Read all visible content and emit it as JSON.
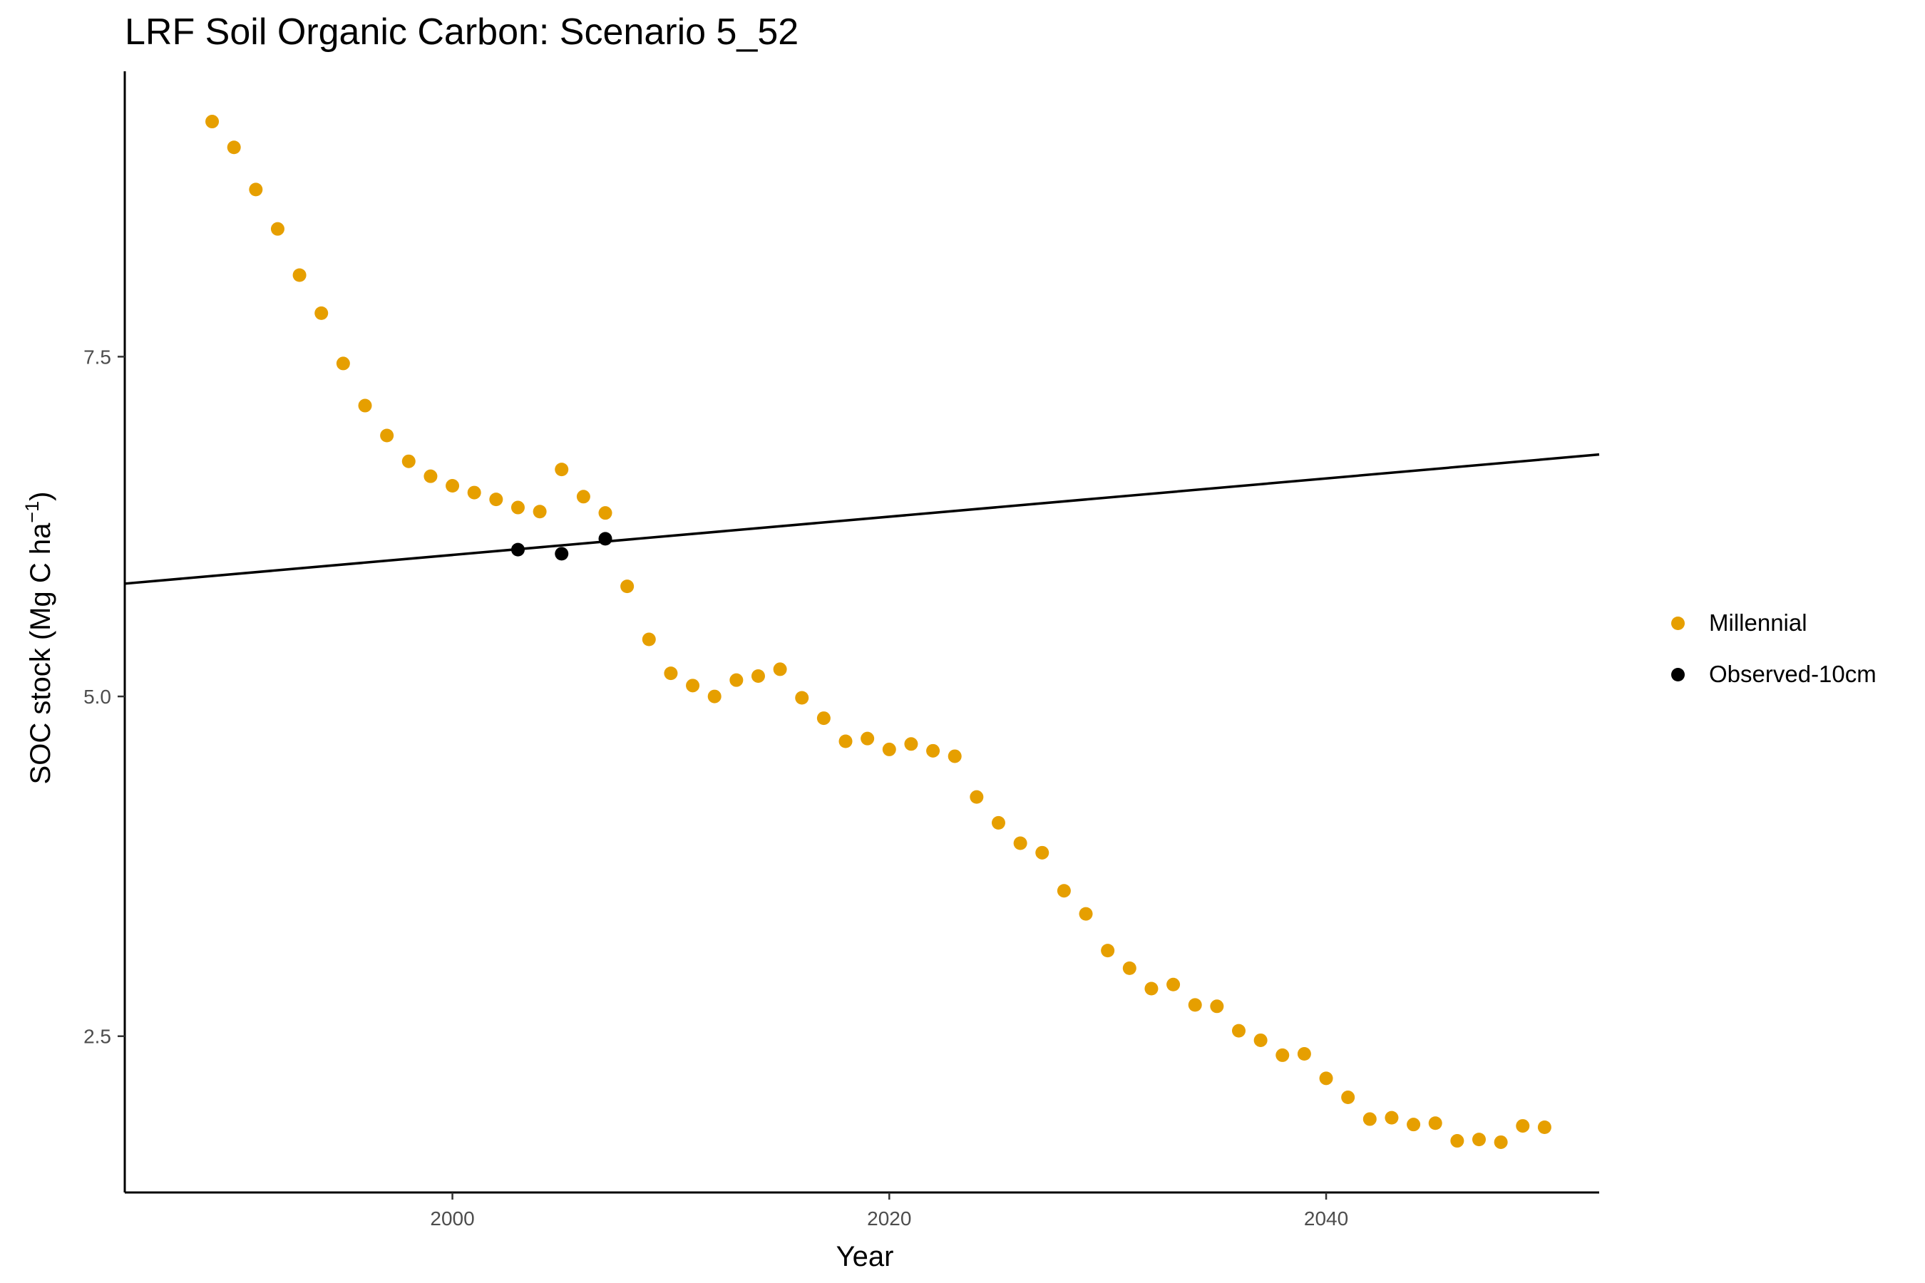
{
  "chart_data": {
    "type": "scatter",
    "title": "LRF Soil Organic Carbon: Scenario  5_52",
    "xlabel": "Year",
    "ylabel": "SOC stock (Mg C ha",
    "ylabel_sup": "−1",
    "ylabel_tail": ")",
    "xlim": [
      1985,
      2052.5
    ],
    "ylim": [
      1.35,
      9.6
    ],
    "x_ticks": [
      2000,
      2020,
      2040
    ],
    "x_tick_labels": [
      "2000",
      "2020",
      "2040"
    ],
    "y_ticks": [
      2.5,
      5.0,
      7.5
    ],
    "y_tick_labels": [
      "2.5",
      "5.0",
      "7.5"
    ],
    "grid": false,
    "legend_position": "right",
    "series": [
      {
        "name": "Millennial",
        "color": "#E69F00",
        "points": [
          [
            1989,
            9.23
          ],
          [
            1990,
            9.04
          ],
          [
            1991,
            8.73
          ],
          [
            1992,
            8.44
          ],
          [
            1993,
            8.1
          ],
          [
            1994,
            7.82
          ],
          [
            1995,
            7.45
          ],
          [
            1996,
            7.14
          ],
          [
            1997,
            6.92
          ],
          [
            1998,
            6.73
          ],
          [
            1999,
            6.62
          ],
          [
            2000,
            6.55
          ],
          [
            2001,
            6.5
          ],
          [
            2002,
            6.45
          ],
          [
            2003,
            6.39
          ],
          [
            2004,
            6.36
          ],
          [
            2005,
            6.67
          ],
          [
            2006,
            6.47
          ],
          [
            2007,
            6.35
          ],
          [
            2008,
            5.81
          ],
          [
            2009,
            5.42
          ],
          [
            2010,
            5.17
          ],
          [
            2011,
            5.08
          ],
          [
            2012,
            5.0
          ],
          [
            2013,
            5.12
          ],
          [
            2014,
            5.15
          ],
          [
            2015,
            5.2
          ],
          [
            2016,
            4.99
          ],
          [
            2017,
            4.84
          ],
          [
            2018,
            4.67
          ],
          [
            2019,
            4.69
          ],
          [
            2020,
            4.61
          ],
          [
            2021,
            4.65
          ],
          [
            2022,
            4.6
          ],
          [
            2023,
            4.56
          ],
          [
            2024,
            4.26
          ],
          [
            2025,
            4.07
          ],
          [
            2026,
            3.92
          ],
          [
            2027,
            3.85
          ],
          [
            2028,
            3.57
          ],
          [
            2029,
            3.4
          ],
          [
            2030,
            3.13
          ],
          [
            2031,
            3.0
          ],
          [
            2032,
            2.85
          ],
          [
            2033,
            2.88
          ],
          [
            2034,
            2.73
          ],
          [
            2035,
            2.72
          ],
          [
            2036,
            2.54
          ],
          [
            2037,
            2.47
          ],
          [
            2038,
            2.36
          ],
          [
            2039,
            2.37
          ],
          [
            2040,
            2.19
          ],
          [
            2041,
            2.05
          ],
          [
            2042,
            1.89
          ],
          [
            2043,
            1.9
          ],
          [
            2044,
            1.85
          ],
          [
            2045,
            1.86
          ],
          [
            2046,
            1.73
          ],
          [
            2047,
            1.74
          ],
          [
            2048,
            1.72
          ],
          [
            2049,
            1.84
          ],
          [
            2050,
            1.83
          ]
        ]
      },
      {
        "name": "Observed-10cm",
        "color": "#000000",
        "points": [
          [
            2003,
            6.08
          ],
          [
            2005,
            6.05
          ],
          [
            2007,
            6.16
          ]
        ]
      }
    ],
    "trend_line": {
      "color": "#000000",
      "points": [
        [
          1985,
          5.83
        ],
        [
          2052.5,
          6.78
        ]
      ]
    }
  }
}
